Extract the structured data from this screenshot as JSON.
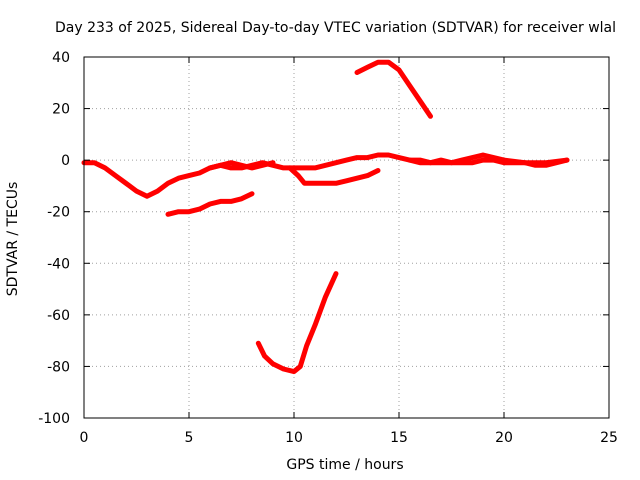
{
  "chart_data": {
    "type": "line",
    "title": "Day 233 of 2025, Sidereal Day-to-day VTEC variation (SDTVAR) for receiver wlal",
    "xlabel": "GPS time / hours",
    "ylabel": "SDTVAR / TECUs",
    "xlim": [
      0,
      25
    ],
    "ylim": [
      -100,
      40
    ],
    "xticks": [
      0,
      5,
      10,
      15,
      20,
      25
    ],
    "yticks": [
      -100,
      -80,
      -60,
      -40,
      -20,
      0,
      20,
      40
    ],
    "grid": true,
    "series_color": "#ff0000",
    "series": [
      {
        "x": [
          0.0,
          0.5,
          1.0,
          1.5,
          2.0,
          2.5,
          3.0,
          3.5,
          4.0,
          4.5,
          5.0,
          5.5,
          6.0,
          6.5,
          7.0,
          7.5,
          8.0,
          8.5,
          9.0,
          9.5,
          10.0,
          10.5,
          11.0,
          11.5,
          12.0,
          12.5,
          13.0,
          13.5,
          14.0,
          14.5,
          15.0,
          15.5,
          16.0,
          16.5,
          17.0,
          17.5,
          18.0,
          18.5,
          19.0,
          19.5,
          20.0,
          20.5,
          21.0,
          21.5,
          22.0,
          22.5,
          23.0
        ],
        "y": [
          -1,
          -1,
          -3,
          -6,
          -9,
          -12,
          -14,
          -12,
          -9,
          -7,
          -6,
          -5,
          -3,
          -2,
          -3,
          -3,
          -2,
          -1,
          -2,
          -3,
          -3,
          -3,
          -3,
          -2,
          -1,
          0,
          1,
          1,
          2,
          2,
          1,
          0,
          -1,
          -1,
          -1,
          -1,
          -1,
          -1,
          0,
          0,
          -1,
          -1,
          -1,
          -2,
          -2,
          -1,
          0
        ]
      },
      {
        "x": [
          13.0,
          13.5,
          14.0,
          14.5,
          15.0,
          15.5,
          16.0,
          16.5
        ],
        "y": [
          34,
          36,
          38,
          38,
          35,
          29,
          23,
          17
        ]
      },
      {
        "x": [
          4.0,
          4.5,
          5.0,
          5.5,
          6.0,
          6.5,
          7.0,
          7.5,
          8.0
        ],
        "y": [
          -21,
          -20,
          -20,
          -19,
          -17,
          -16,
          -16,
          -15,
          -13
        ]
      },
      {
        "x": [
          8.3,
          8.6,
          9.0,
          9.5,
          10.0,
          10.3,
          10.6,
          11.0,
          11.5,
          12.0
        ],
        "y": [
          -71,
          -76,
          -79,
          -81,
          -82,
          -80,
          -72,
          -64,
          -53,
          -44
        ]
      },
      {
        "x": [
          9.8,
          10.2,
          10.5,
          11.0,
          11.5,
          12.0,
          12.5,
          13.0,
          13.5,
          14.0
        ],
        "y": [
          -3,
          -6,
          -9,
          -9,
          -9,
          -9,
          -8,
          -7,
          -6,
          -4
        ]
      },
      {
        "x": [
          6.0,
          6.5,
          7.0,
          7.5,
          8.0,
          8.5,
          9.0
        ],
        "y": [
          -3,
          -2,
          -1,
          -2,
          -3,
          -2,
          -1
        ]
      },
      {
        "x": [
          15.5,
          16.0,
          16.5,
          17.0,
          17.5,
          18.0,
          18.5,
          19.0,
          19.5,
          20.0,
          21.0,
          22.0,
          23.0
        ],
        "y": [
          0,
          0,
          -1,
          0,
          -1,
          0,
          1,
          2,
          1,
          0,
          -1,
          -1,
          0
        ]
      }
    ]
  }
}
